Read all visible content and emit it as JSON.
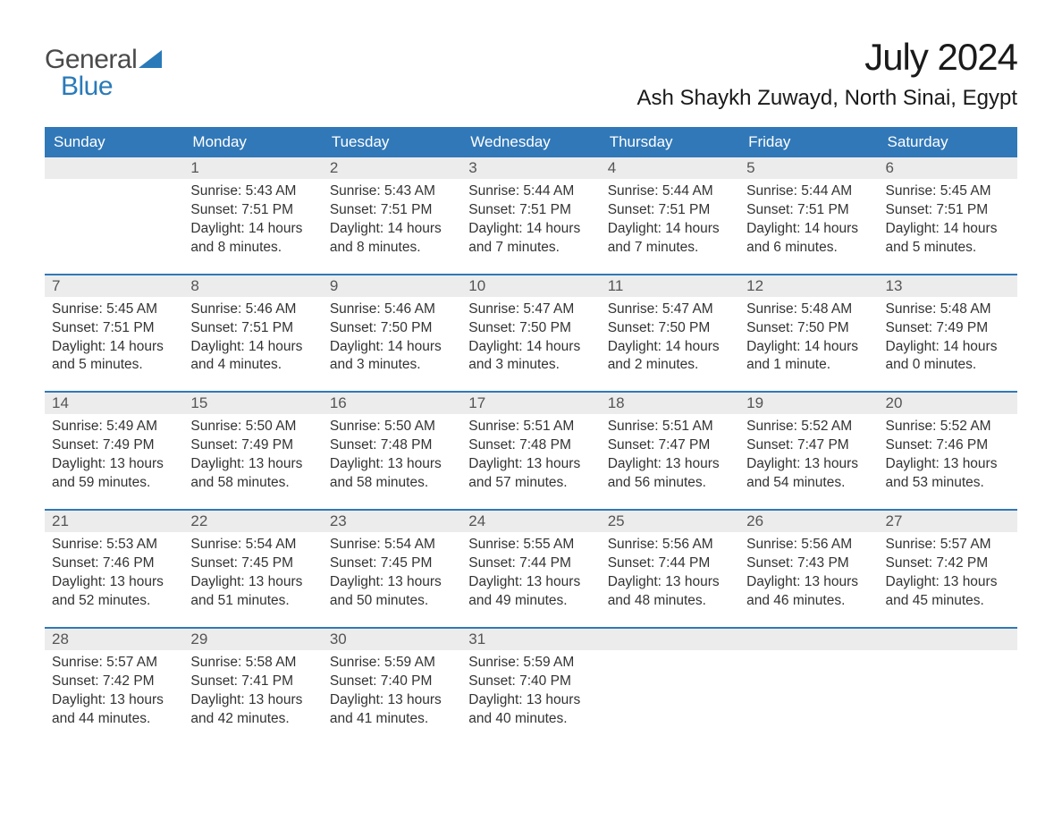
{
  "brand": {
    "word1": "General",
    "word2": "Blue"
  },
  "title": "July 2024",
  "location": "Ash Shaykh Zuwayd, North Sinai, Egypt",
  "colors": {
    "header_bg": "#3178b8",
    "header_text": "#ffffff",
    "daynum_bg": "#ececec",
    "daynum_text": "#555555",
    "body_text": "#333333",
    "week_divider": "#3178b8",
    "logo_gray": "#4a4a4a",
    "logo_blue": "#2a7ab9",
    "page_bg": "#ffffff"
  },
  "typography": {
    "title_fontsize": 42,
    "location_fontsize": 24,
    "header_fontsize": 17,
    "daynum_fontsize": 17,
    "body_fontsize": 15.5,
    "logo_fontsize": 30
  },
  "day_headers": [
    "Sunday",
    "Monday",
    "Tuesday",
    "Wednesday",
    "Thursday",
    "Friday",
    "Saturday"
  ],
  "weeks": [
    [
      {
        "num": "",
        "sunrise": "",
        "sunset": "",
        "daylight": ""
      },
      {
        "num": "1",
        "sunrise": "5:43 AM",
        "sunset": "7:51 PM",
        "daylight": "14 hours and 8 minutes."
      },
      {
        "num": "2",
        "sunrise": "5:43 AM",
        "sunset": "7:51 PM",
        "daylight": "14 hours and 8 minutes."
      },
      {
        "num": "3",
        "sunrise": "5:44 AM",
        "sunset": "7:51 PM",
        "daylight": "14 hours and 7 minutes."
      },
      {
        "num": "4",
        "sunrise": "5:44 AM",
        "sunset": "7:51 PM",
        "daylight": "14 hours and 7 minutes."
      },
      {
        "num": "5",
        "sunrise": "5:44 AM",
        "sunset": "7:51 PM",
        "daylight": "14 hours and 6 minutes."
      },
      {
        "num": "6",
        "sunrise": "5:45 AM",
        "sunset": "7:51 PM",
        "daylight": "14 hours and 5 minutes."
      }
    ],
    [
      {
        "num": "7",
        "sunrise": "5:45 AM",
        "sunset": "7:51 PM",
        "daylight": "14 hours and 5 minutes."
      },
      {
        "num": "8",
        "sunrise": "5:46 AM",
        "sunset": "7:51 PM",
        "daylight": "14 hours and 4 minutes."
      },
      {
        "num": "9",
        "sunrise": "5:46 AM",
        "sunset": "7:50 PM",
        "daylight": "14 hours and 3 minutes."
      },
      {
        "num": "10",
        "sunrise": "5:47 AM",
        "sunset": "7:50 PM",
        "daylight": "14 hours and 3 minutes."
      },
      {
        "num": "11",
        "sunrise": "5:47 AM",
        "sunset": "7:50 PM",
        "daylight": "14 hours and 2 minutes."
      },
      {
        "num": "12",
        "sunrise": "5:48 AM",
        "sunset": "7:50 PM",
        "daylight": "14 hours and 1 minute."
      },
      {
        "num": "13",
        "sunrise": "5:48 AM",
        "sunset": "7:49 PM",
        "daylight": "14 hours and 0 minutes."
      }
    ],
    [
      {
        "num": "14",
        "sunrise": "5:49 AM",
        "sunset": "7:49 PM",
        "daylight": "13 hours and 59 minutes."
      },
      {
        "num": "15",
        "sunrise": "5:50 AM",
        "sunset": "7:49 PM",
        "daylight": "13 hours and 58 minutes."
      },
      {
        "num": "16",
        "sunrise": "5:50 AM",
        "sunset": "7:48 PM",
        "daylight": "13 hours and 58 minutes."
      },
      {
        "num": "17",
        "sunrise": "5:51 AM",
        "sunset": "7:48 PM",
        "daylight": "13 hours and 57 minutes."
      },
      {
        "num": "18",
        "sunrise": "5:51 AM",
        "sunset": "7:47 PM",
        "daylight": "13 hours and 56 minutes."
      },
      {
        "num": "19",
        "sunrise": "5:52 AM",
        "sunset": "7:47 PM",
        "daylight": "13 hours and 54 minutes."
      },
      {
        "num": "20",
        "sunrise": "5:52 AM",
        "sunset": "7:46 PM",
        "daylight": "13 hours and 53 minutes."
      }
    ],
    [
      {
        "num": "21",
        "sunrise": "5:53 AM",
        "sunset": "7:46 PM",
        "daylight": "13 hours and 52 minutes."
      },
      {
        "num": "22",
        "sunrise": "5:54 AM",
        "sunset": "7:45 PM",
        "daylight": "13 hours and 51 minutes."
      },
      {
        "num": "23",
        "sunrise": "5:54 AM",
        "sunset": "7:45 PM",
        "daylight": "13 hours and 50 minutes."
      },
      {
        "num": "24",
        "sunrise": "5:55 AM",
        "sunset": "7:44 PM",
        "daylight": "13 hours and 49 minutes."
      },
      {
        "num": "25",
        "sunrise": "5:56 AM",
        "sunset": "7:44 PM",
        "daylight": "13 hours and 48 minutes."
      },
      {
        "num": "26",
        "sunrise": "5:56 AM",
        "sunset": "7:43 PM",
        "daylight": "13 hours and 46 minutes."
      },
      {
        "num": "27",
        "sunrise": "5:57 AM",
        "sunset": "7:42 PM",
        "daylight": "13 hours and 45 minutes."
      }
    ],
    [
      {
        "num": "28",
        "sunrise": "5:57 AM",
        "sunset": "7:42 PM",
        "daylight": "13 hours and 44 minutes."
      },
      {
        "num": "29",
        "sunrise": "5:58 AM",
        "sunset": "7:41 PM",
        "daylight": "13 hours and 42 minutes."
      },
      {
        "num": "30",
        "sunrise": "5:59 AM",
        "sunset": "7:40 PM",
        "daylight": "13 hours and 41 minutes."
      },
      {
        "num": "31",
        "sunrise": "5:59 AM",
        "sunset": "7:40 PM",
        "daylight": "13 hours and 40 minutes."
      },
      {
        "num": "",
        "sunrise": "",
        "sunset": "",
        "daylight": ""
      },
      {
        "num": "",
        "sunrise": "",
        "sunset": "",
        "daylight": ""
      },
      {
        "num": "",
        "sunrise": "",
        "sunset": "",
        "daylight": ""
      }
    ]
  ],
  "labels": {
    "sunrise": "Sunrise:",
    "sunset": "Sunset:",
    "daylight": "Daylight:"
  }
}
